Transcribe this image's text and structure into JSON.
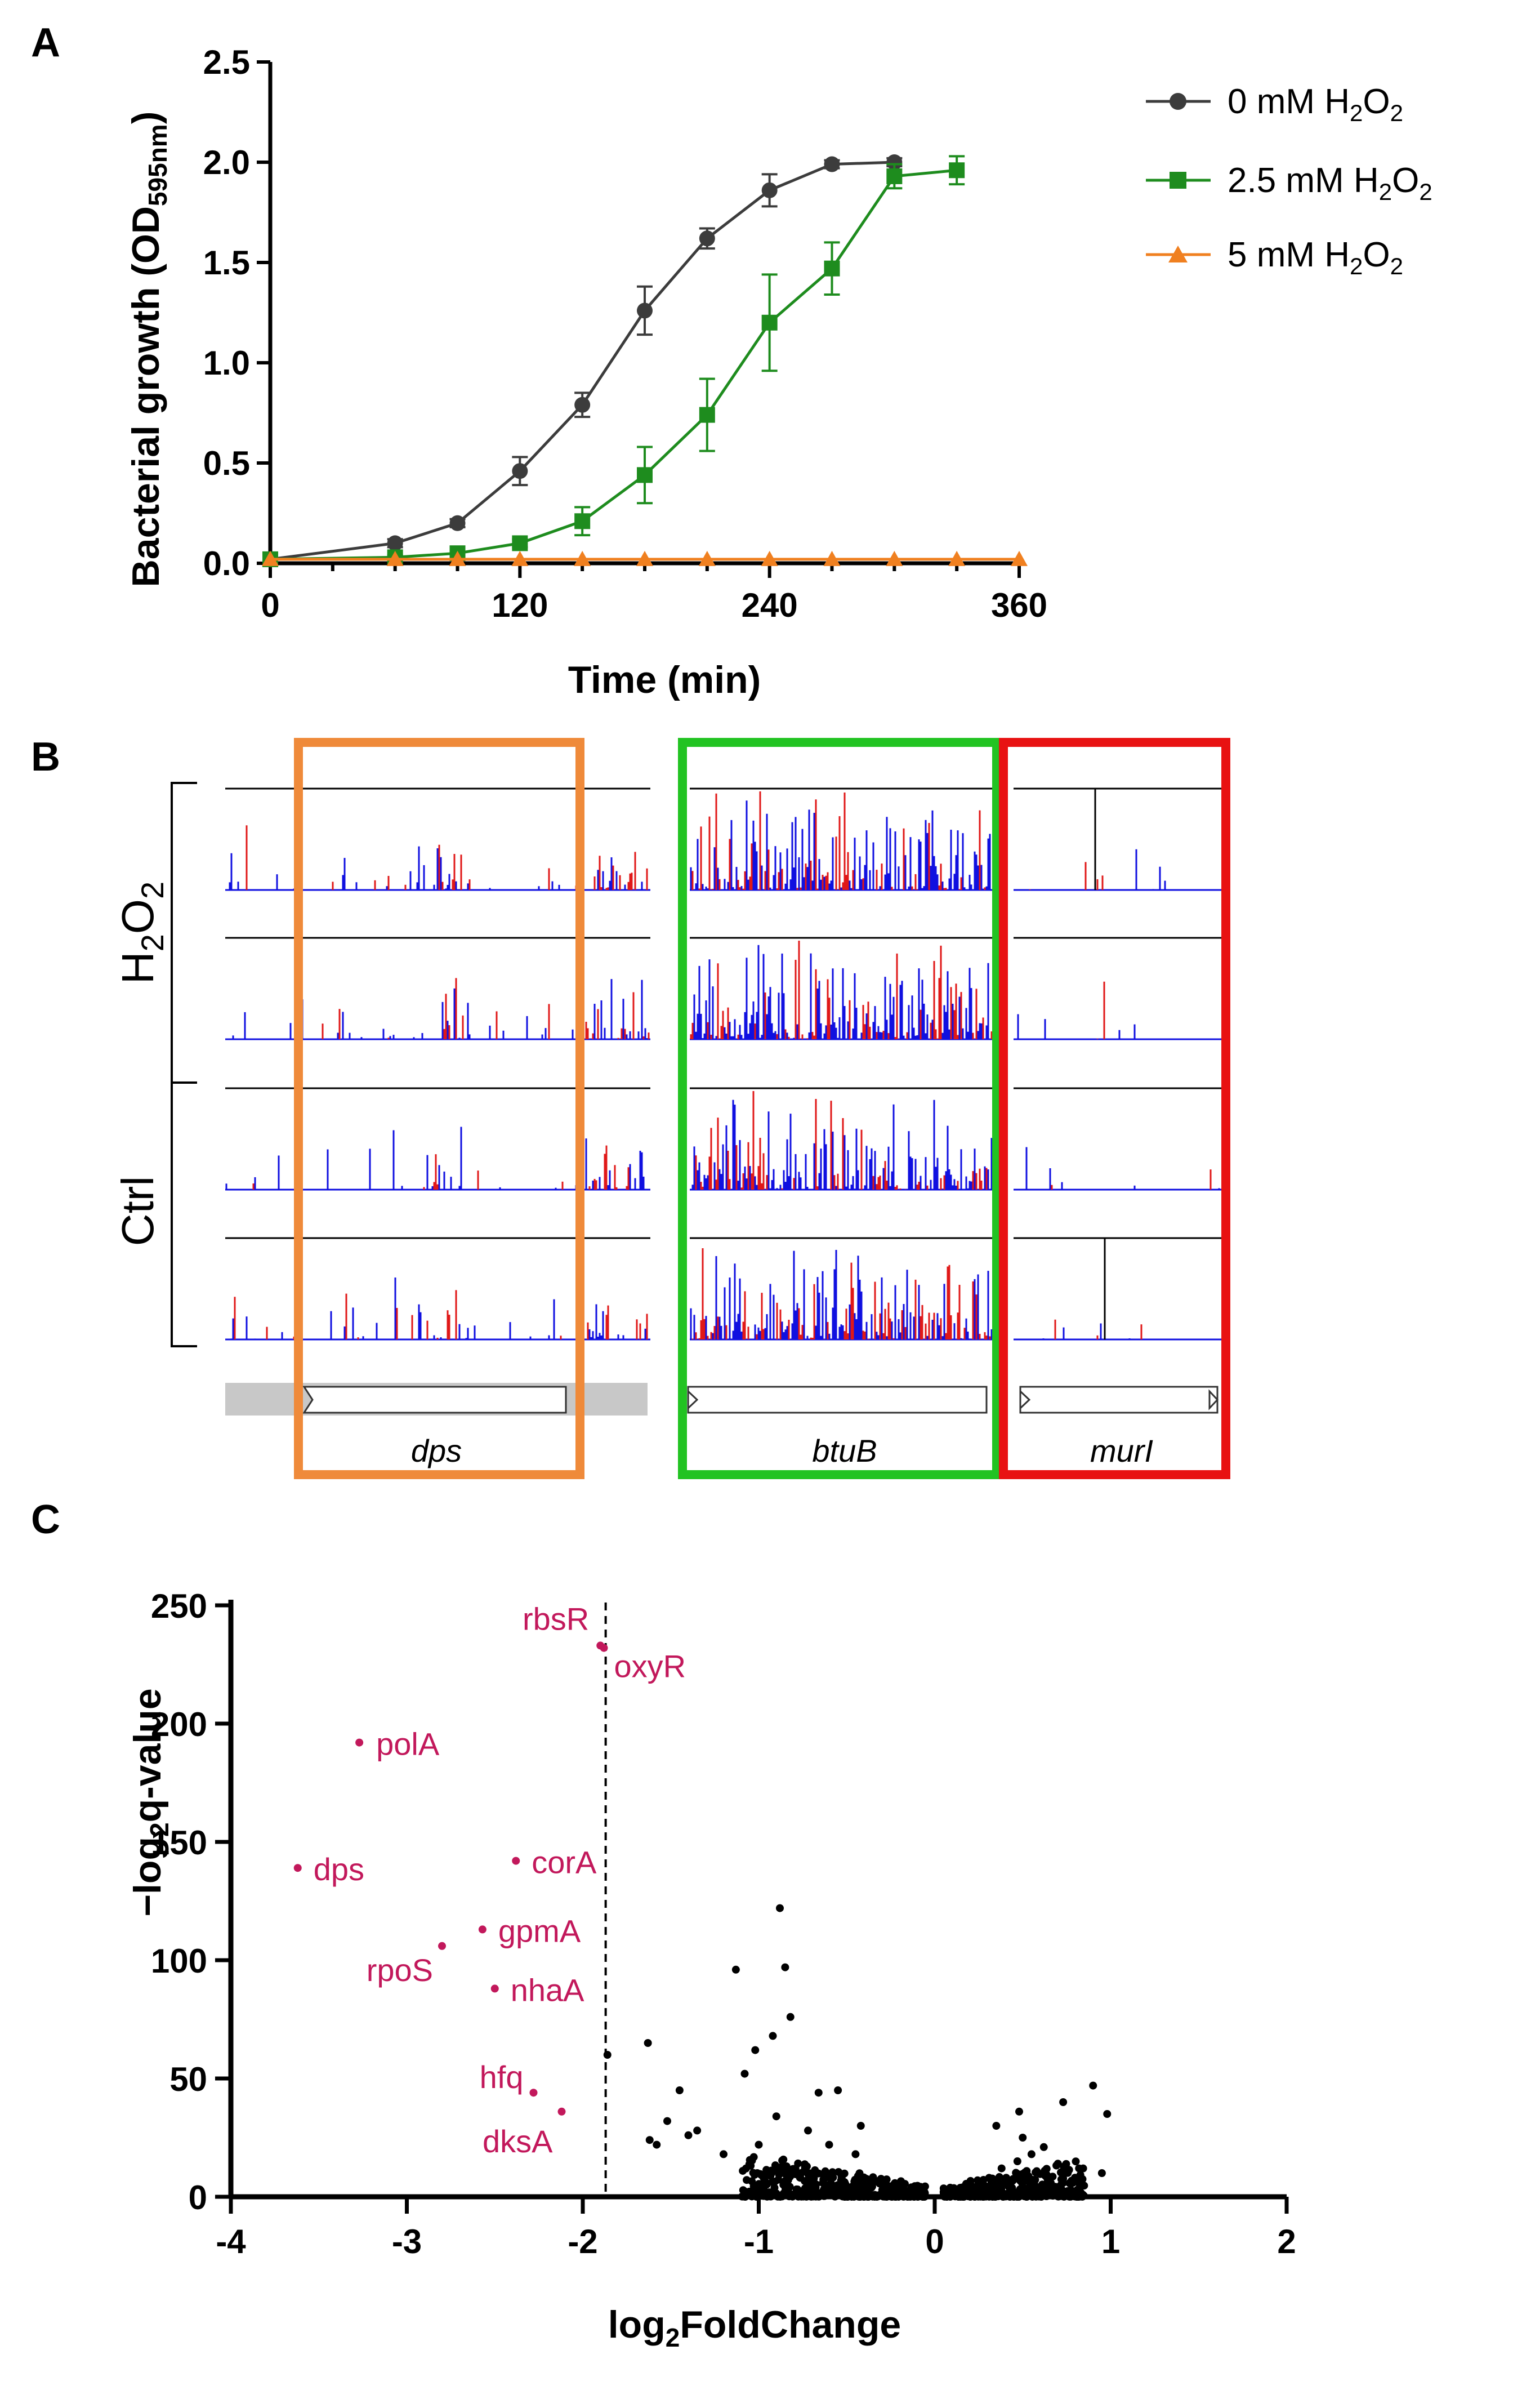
{
  "colors": {
    "ctrl": "#3c3c3c",
    "mid": "#1e8c1e",
    "high": "#f08020",
    "magenta": "#c2185b",
    "blue": "#1010e0",
    "red": "#e01818",
    "box_dps": "#ef8a3a",
    "box_btub": "#22c322",
    "box_muri": "#e81212"
  },
  "panels": {
    "a": "A",
    "b": "B",
    "c": "C"
  },
  "chart_data": [
    {
      "type": "line",
      "panel": "A",
      "xlabel": "Time (min)",
      "ylabel_main": "Bacterial growth (OD",
      "ylabel_sub": "595nm",
      "ylabel_close": ")",
      "xlim": [
        0,
        360
      ],
      "ylim": [
        0,
        2.5
      ],
      "xticks": [
        0,
        120,
        240,
        360
      ],
      "yticks": [
        0.0,
        0.5,
        1.0,
        1.5,
        2.0,
        2.5
      ],
      "ytick_labels": [
        "0.0",
        "0.5",
        "1.0",
        "1.5",
        "2.0",
        "2.5"
      ],
      "series": [
        {
          "name": "0 mM H2O2",
          "label_main": "0 mM H",
          "label_mid": "O",
          "marker": "circle",
          "color": "#3c3c3c",
          "x": [
            0,
            60,
            90,
            120,
            150,
            180,
            210,
            240,
            270,
            300
          ],
          "y": [
            0.02,
            0.1,
            0.2,
            0.46,
            0.79,
            1.26,
            1.62,
            1.86,
            1.99,
            2.0
          ],
          "err": [
            0.01,
            0.02,
            0.02,
            0.07,
            0.06,
            0.12,
            0.05,
            0.08,
            0.02,
            0.02
          ]
        },
        {
          "name": "2.5 mM H2O2",
          "label_main": "2.5 mM H",
          "label_mid": "O",
          "marker": "square",
          "color": "#1e8c1e",
          "x": [
            0,
            60,
            90,
            120,
            150,
            180,
            210,
            240,
            270,
            300,
            330
          ],
          "y": [
            0.02,
            0.03,
            0.05,
            0.1,
            0.21,
            0.44,
            0.74,
            1.2,
            1.47,
            1.93,
            1.96
          ],
          "err": [
            0.01,
            0.01,
            0.01,
            0.02,
            0.07,
            0.14,
            0.18,
            0.24,
            0.13,
            0.06,
            0.07
          ]
        },
        {
          "name": "5 mM H2O2",
          "label_main": "5 mM H",
          "label_mid": "O",
          "marker": "triangle",
          "color": "#f08020",
          "x": [
            0,
            60,
            90,
            120,
            150,
            180,
            210,
            240,
            270,
            300,
            330,
            360
          ],
          "y": [
            0.02,
            0.02,
            0.02,
            0.02,
            0.02,
            0.02,
            0.02,
            0.02,
            0.02,
            0.02,
            0.02,
            0.02
          ],
          "err": [
            0,
            0,
            0,
            0,
            0,
            0,
            0,
            0,
            0,
            0,
            0,
            0
          ]
        }
      ],
      "subscript_two": "2",
      "legend_position": "top-right"
    },
    {
      "type": "scatter",
      "panel": "C",
      "xlabel_main": "log",
      "xlabel_sub": "2",
      "xlabel_rest": "FoldChange",
      "ylabel_main": "−log",
      "ylabel_sub": "2",
      "ylabel_rest": "q-value",
      "xlim": [
        -4,
        2
      ],
      "ylim": [
        0,
        250
      ],
      "xticks": [
        -4,
        -3,
        -2,
        -1,
        0,
        1,
        2
      ],
      "xtick_labels": [
        "-4",
        "-3",
        "-2",
        "-1",
        "0",
        "1",
        "2"
      ],
      "yticks": [
        0,
        50,
        100,
        150,
        200,
        250
      ],
      "threshold_x": -1.87,
      "labeled_points": [
        {
          "gene": "rbsR",
          "x": -1.9,
          "y": 233
        },
        {
          "gene": "oxyR",
          "x": -1.88,
          "y": 232
        },
        {
          "gene": "polA",
          "x": -3.27,
          "y": 192
        },
        {
          "gene": "dps",
          "x": -3.62,
          "y": 139
        },
        {
          "gene": "corA",
          "x": -2.38,
          "y": 142
        },
        {
          "gene": "gpmA",
          "x": -2.57,
          "y": 113
        },
        {
          "gene": "rpoS",
          "x": -2.8,
          "y": 106
        },
        {
          "gene": "nhaA",
          "x": -2.5,
          "y": 88
        },
        {
          "gene": "hfq",
          "x": -2.28,
          "y": 44
        },
        {
          "gene": "dksA",
          "x": -2.12,
          "y": 36
        }
      ],
      "other_points": [
        [
          -1.86,
          60
        ],
        [
          -1.63,
          65
        ],
        [
          -1.45,
          45
        ],
        [
          -1.52,
          32
        ],
        [
          -1.58,
          22
        ],
        [
          -1.35,
          28
        ],
        [
          -1.2,
          18
        ],
        [
          -1.08,
          52
        ],
        [
          -1.02,
          62
        ],
        [
          -0.92,
          68
        ],
        [
          -0.88,
          122
        ],
        [
          -1.13,
          96
        ],
        [
          -0.85,
          97
        ],
        [
          -0.82,
          76
        ],
        [
          -0.72,
          28
        ],
        [
          -0.66,
          44
        ],
        [
          -0.6,
          22
        ],
        [
          -0.55,
          45
        ],
        [
          -0.42,
          30
        ],
        [
          -0.45,
          18
        ],
        [
          -0.9,
          34
        ],
        [
          -1.0,
          22
        ],
        [
          -1.62,
          24
        ],
        [
          -1.4,
          26
        ],
        [
          -0.78,
          10
        ],
        [
          0.9,
          47
        ],
        [
          0.98,
          35
        ],
        [
          0.73,
          40
        ],
        [
          0.62,
          21
        ],
        [
          0.5,
          25
        ],
        [
          0.47,
          15
        ],
        [
          0.38,
          12
        ],
        [
          0.55,
          18
        ],
        [
          0.95,
          10
        ],
        [
          0.48,
          36
        ],
        [
          0.35,
          30
        ],
        [
          0.82,
          12
        ],
        [
          0.7,
          14
        ]
      ],
      "cluster_neg": [
        -1.1,
        -0.05
      ],
      "cluster_pos": [
        0.05,
        0.85
      ]
    }
  ],
  "panel_b": {
    "condition_labels": {
      "treated_main": "H",
      "treated_mid": "O",
      "sub_two": "2",
      "control": "Ctrl"
    },
    "genes": [
      "dps",
      "btuB",
      "murI"
    ]
  }
}
